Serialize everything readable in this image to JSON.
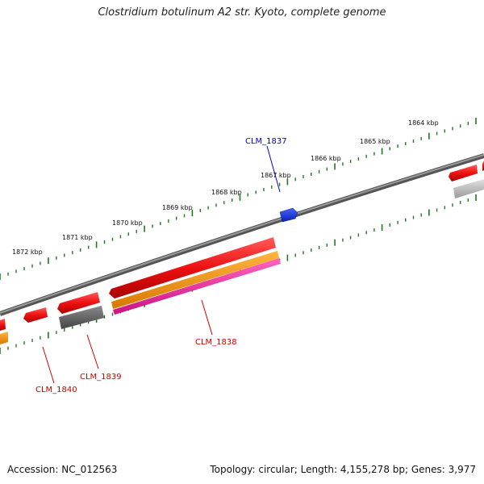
{
  "title": "Clostridium botulinum A2 str. Kyoto, complete genome",
  "footer": {
    "accession": "Accession: NC_012563",
    "summary": "Topology: circular; Length: 4,155,278 bp; Genes: 3,977"
  },
  "ruler": {
    "ticks": [
      "1864 kbp",
      "1865 kbp",
      "1866 kbp",
      "1867 kbp",
      "1868 kbp",
      "1869 kbp",
      "1870 kbp",
      "1871 kbp",
      "1872 kbp"
    ]
  },
  "genes": {
    "clm_1837": "CLM_1837",
    "clm_1838": "CLM_1838",
    "clm_1839": "CLM_1839",
    "clm_1840": "CLM_1840"
  },
  "colors": {
    "backbone": "#7a7a7a",
    "tick": "#1e7a1e",
    "gene_red": "#ee1111",
    "gene_blue": "#1133dd",
    "gene_orange": "#ee8800",
    "gene_magenta": "#ee2299",
    "gene_dark": "#666666",
    "gene_light": "#bbbbbb",
    "label_red": "#cc0000",
    "label_blue": "#0000cc"
  }
}
